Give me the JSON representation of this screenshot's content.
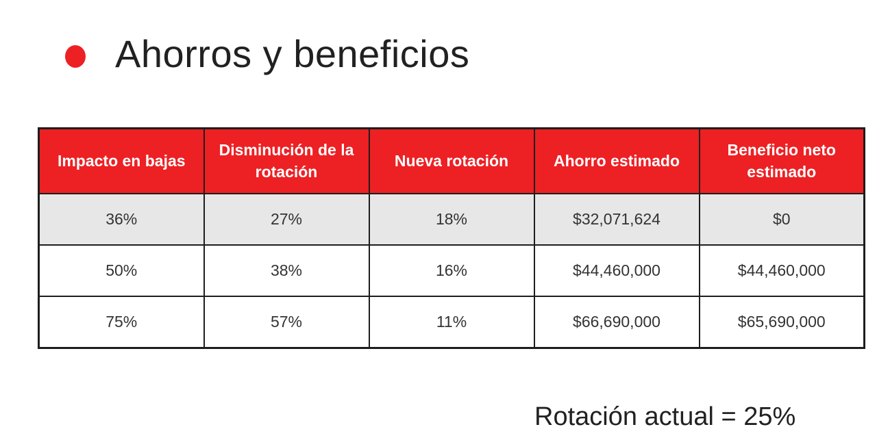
{
  "slide": {
    "title": "Ahorros y beneficios",
    "footnote": "Rotación actual = 25%"
  },
  "table": {
    "columns": [
      "Impacto en bajas",
      "Disminución de la rotación",
      "Nueva rotación",
      "Ahorro estimado",
      "Beneficio neto estimado"
    ],
    "rows": [
      {
        "cells": [
          "36%",
          "27%",
          "18%",
          "$32,071,624",
          "$0"
        ]
      },
      {
        "cells": [
          "50%",
          "38%",
          "16%",
          "$44,460,000",
          "$44,460,000"
        ]
      },
      {
        "cells": [
          "75%",
          "57%",
          "11%",
          "$66,690,000",
          "$65,690,000"
        ]
      }
    ]
  },
  "colors": {
    "header_red": "#ED2024",
    "bullet_red": "#ED2024",
    "alt_row_gray": "#E7E7E8",
    "border_black": "#1D1D1B",
    "text_dark": "#333333"
  }
}
